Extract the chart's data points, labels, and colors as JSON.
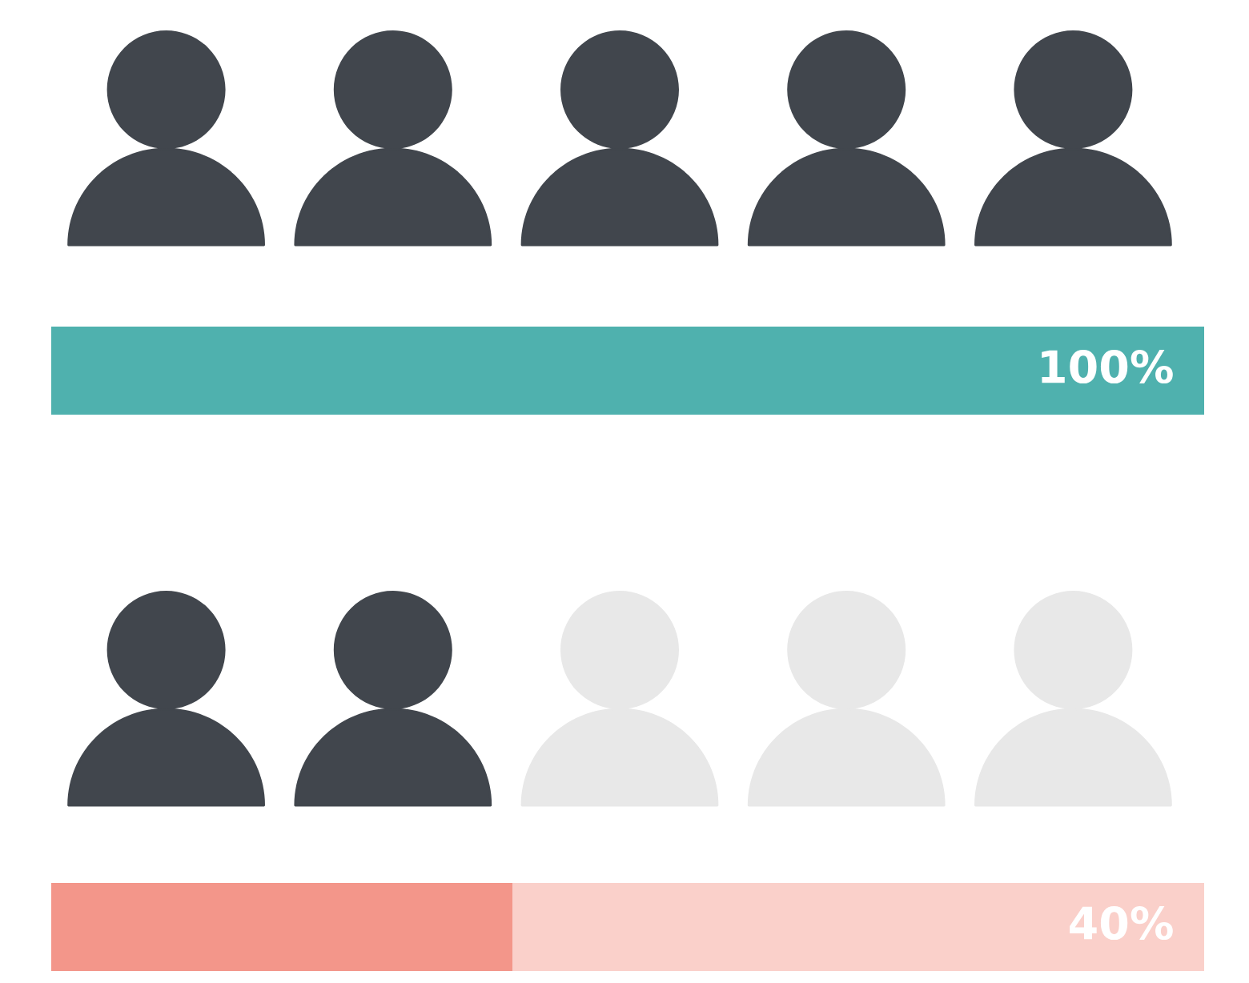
{
  "chart_data": {
    "type": "bar",
    "orientation": "horizontal",
    "categories": [
      null,
      null
    ],
    "values": [
      100,
      40
    ],
    "colors": [
      "#4fb1ae",
      "#f3968a"
    ],
    "xlim": [
      0,
      100
    ],
    "value_labels": [
      "100%",
      "40%"
    ]
  }
}
